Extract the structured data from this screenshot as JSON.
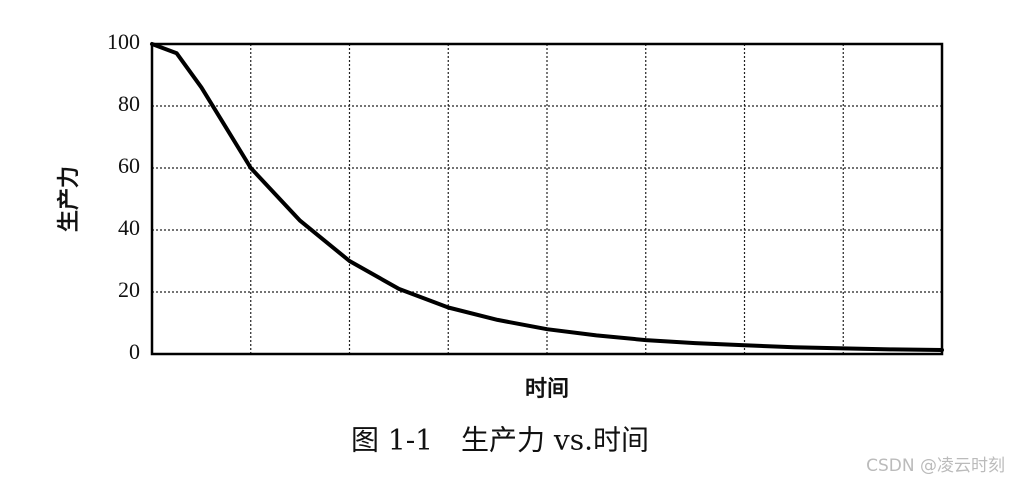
{
  "chart_data": {
    "type": "line",
    "title": "图 1-1　生产力 vs.时间",
    "x_label": "时间",
    "y_label": "生产力",
    "x": [
      0,
      0.25,
      0.5,
      0.75,
      1,
      1.5,
      2,
      2.5,
      3,
      3.5,
      4,
      4.5,
      5,
      5.5,
      6,
      6.5,
      7,
      7.5,
      8
    ],
    "series": [
      {
        "name": "生产力",
        "color": "#000000",
        "values": [
          100,
          97,
          86,
          73,
          60,
          43,
          30,
          21,
          15,
          11,
          8,
          6,
          4.5,
          3.5,
          2.8,
          2.2,
          1.8,
          1.5,
          1.3
        ]
      }
    ],
    "xlim": [
      0,
      8
    ],
    "xticks": [
      0,
      1,
      2,
      3,
      4,
      5,
      6,
      7,
      8
    ],
    "show_xtick_labels": false,
    "ylim": [
      0,
      100
    ],
    "yticks": [
      0,
      20,
      40,
      60,
      80,
      100
    ],
    "grid": true,
    "watermark": "CSDN @凌云时刻"
  }
}
